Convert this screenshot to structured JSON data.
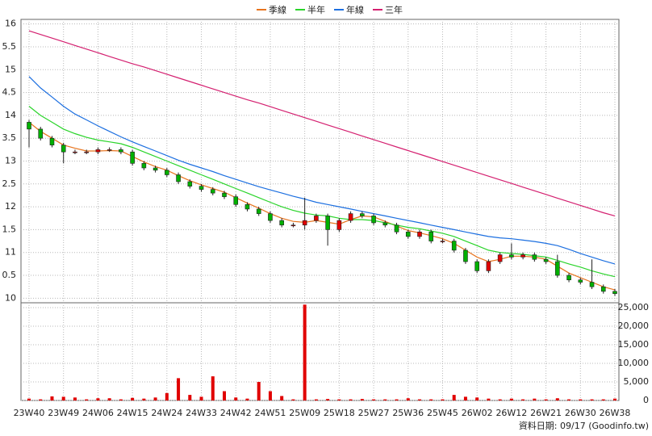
{
  "chart_data": {
    "type": "candlestick",
    "legend_position": "top",
    "grid": true,
    "up_color": "#e00000",
    "down_color": "#00b000",
    "source_note": "資料日期: 09/17 (Goodinfo.tw)",
    "categories": [
      "23W40",
      null,
      null,
      "23W49",
      null,
      null,
      "24W06",
      null,
      null,
      "24W15",
      null,
      null,
      "24W24",
      null,
      null,
      "24W33",
      null,
      null,
      "24W42",
      null,
      null,
      "24W51",
      null,
      null,
      "25W09",
      null,
      null,
      "25W18",
      null,
      null,
      "25W27",
      null,
      null,
      "25W36",
      null,
      null,
      "25W45",
      null,
      null,
      "26W02",
      null,
      null,
      "26W12",
      null,
      null,
      "26W21",
      null,
      null,
      "26W30",
      null,
      null,
      "26W38"
    ],
    "candles": {
      "open": [
        13.85,
        13.7,
        13.5,
        13.35,
        13.2,
        13.2,
        13.2,
        13.25,
        13.25,
        13.2,
        12.95,
        12.85,
        12.8,
        12.7,
        12.55,
        12.45,
        12.38,
        12.3,
        12.22,
        12.05,
        11.95,
        11.85,
        11.7,
        11.6,
        11.6,
        11.7,
        11.8,
        11.5,
        11.7,
        11.85,
        11.8,
        11.65,
        11.6,
        11.45,
        11.35,
        11.45,
        11.25,
        11.25,
        11.05,
        10.8,
        10.6,
        10.8,
        10.95,
        10.9,
        10.95,
        10.85,
        10.8,
        10.5,
        10.4,
        10.35,
        10.25,
        10.15
      ],
      "high": [
        13.9,
        13.75,
        13.55,
        13.4,
        13.25,
        13.25,
        13.3,
        13.3,
        13.3,
        13.25,
        13.0,
        12.9,
        12.85,
        12.75,
        12.6,
        12.5,
        12.43,
        12.35,
        12.27,
        12.1,
        12.0,
        11.9,
        11.75,
        11.65,
        12.2,
        11.85,
        11.85,
        11.75,
        11.9,
        11.9,
        11.85,
        11.7,
        11.65,
        11.5,
        11.5,
        11.5,
        11.3,
        11.3,
        11.1,
        10.85,
        10.85,
        11.0,
        11.2,
        11.0,
        11.0,
        10.9,
        10.95,
        10.55,
        10.45,
        10.85,
        10.3,
        10.2
      ],
      "low": [
        13.3,
        13.45,
        13.3,
        12.95,
        13.15,
        13.15,
        13.15,
        13.2,
        13.15,
        12.9,
        12.8,
        12.75,
        12.65,
        12.5,
        12.4,
        12.33,
        12.25,
        12.17,
        12.0,
        11.9,
        11.8,
        11.65,
        11.55,
        11.55,
        11.5,
        11.65,
        11.15,
        11.45,
        11.65,
        11.75,
        11.6,
        11.55,
        11.4,
        11.3,
        11.3,
        11.2,
        11.2,
        11.0,
        10.75,
        10.55,
        10.55,
        10.75,
        10.85,
        10.85,
        10.8,
        10.75,
        10.45,
        10.35,
        10.3,
        10.2,
        10.1,
        10.05
      ],
      "close": [
        13.7,
        13.5,
        13.35,
        13.2,
        13.2,
        13.2,
        13.25,
        13.25,
        13.2,
        12.95,
        12.85,
        12.8,
        12.7,
        12.55,
        12.45,
        12.38,
        12.3,
        12.22,
        12.05,
        11.95,
        11.85,
        11.7,
        11.6,
        11.6,
        11.7,
        11.8,
        11.5,
        11.7,
        11.85,
        11.8,
        11.65,
        11.6,
        11.45,
        11.35,
        11.45,
        11.25,
        11.25,
        11.05,
        10.8,
        10.6,
        10.8,
        10.95,
        10.9,
        10.95,
        10.85,
        10.8,
        10.5,
        10.4,
        10.35,
        10.25,
        10.15,
        10.1
      ]
    },
    "series": [
      {
        "name": "季線",
        "color": "#e8741e",
        "values": [
          13.85,
          13.65,
          13.5,
          13.35,
          13.28,
          13.22,
          13.22,
          13.23,
          13.22,
          13.1,
          12.98,
          12.88,
          12.8,
          12.68,
          12.57,
          12.48,
          12.4,
          12.32,
          12.2,
          12.08,
          11.97,
          11.85,
          11.75,
          11.68,
          11.66,
          11.7,
          11.66,
          11.62,
          11.72,
          11.8,
          11.78,
          11.68,
          11.58,
          11.48,
          11.43,
          11.37,
          11.3,
          11.2,
          11.05,
          10.9,
          10.8,
          10.85,
          10.92,
          10.92,
          10.9,
          10.85,
          10.7,
          10.55,
          10.45,
          10.35,
          10.25,
          10.18
        ]
      },
      {
        "name": "半年",
        "color": "#2ad42a",
        "values": [
          14.2,
          14.0,
          13.85,
          13.7,
          13.6,
          13.52,
          13.46,
          13.42,
          13.38,
          13.3,
          13.2,
          13.1,
          13.0,
          12.9,
          12.8,
          12.7,
          12.6,
          12.5,
          12.4,
          12.3,
          12.2,
          12.1,
          12.0,
          11.92,
          11.86,
          11.82,
          11.8,
          11.75,
          11.72,
          11.72,
          11.7,
          11.65,
          11.6,
          11.55,
          11.52,
          11.47,
          11.42,
          11.35,
          11.25,
          11.15,
          11.05,
          11.0,
          10.98,
          10.96,
          10.93,
          10.9,
          10.83,
          10.75,
          10.68,
          10.6,
          10.53,
          10.47
        ]
      },
      {
        "name": "年線",
        "color": "#1c6fe0",
        "values": [
          14.85,
          14.6,
          14.4,
          14.2,
          14.03,
          13.9,
          13.77,
          13.65,
          13.53,
          13.42,
          13.32,
          13.22,
          13.12,
          13.02,
          12.93,
          12.85,
          12.77,
          12.68,
          12.6,
          12.52,
          12.44,
          12.37,
          12.3,
          12.23,
          12.17,
          12.1,
          12.05,
          12.0,
          11.95,
          11.9,
          11.85,
          11.8,
          11.75,
          11.7,
          11.65,
          11.6,
          11.55,
          11.5,
          11.45,
          11.4,
          11.35,
          11.32,
          11.3,
          11.27,
          11.24,
          11.2,
          11.15,
          11.07,
          10.98,
          10.9,
          10.82,
          10.75
        ]
      },
      {
        "name": "三年",
        "color": "#d42070",
        "values": [
          15.85,
          15.77,
          15.69,
          15.61,
          15.53,
          15.45,
          15.37,
          15.29,
          15.21,
          15.13,
          15.06,
          14.98,
          14.9,
          14.82,
          14.74,
          14.66,
          14.58,
          14.5,
          14.42,
          14.34,
          14.27,
          14.19,
          14.11,
          14.03,
          13.95,
          13.87,
          13.79,
          13.71,
          13.63,
          13.55,
          13.47,
          13.39,
          13.31,
          13.23,
          13.15,
          13.07,
          12.99,
          12.91,
          12.83,
          12.75,
          12.67,
          12.59,
          12.51,
          12.43,
          12.35,
          12.27,
          12.19,
          12.11,
          12.03,
          11.95,
          11.87,
          11.8
        ]
      }
    ],
    "volume": {
      "color": "#e00000",
      "axis": "y2",
      "values": [
        500,
        300,
        1100,
        1000,
        800,
        300,
        600,
        600,
        300,
        700,
        500,
        800,
        2000,
        6000,
        1500,
        1000,
        6500,
        2500,
        800,
        500,
        5000,
        2500,
        1200,
        300,
        25800,
        300,
        400,
        300,
        300,
        400,
        300,
        300,
        300,
        600,
        300,
        300,
        300,
        1500,
        1000,
        800,
        500,
        300,
        500,
        300,
        500,
        300,
        600,
        300,
        300,
        300,
        300,
        500
      ]
    },
    "ylim": [
      9.9,
      16.1
    ],
    "yticks": [
      10,
      {
        "value": 10.5,
        "label": "0.5"
      },
      11,
      {
        "value": 11.5,
        "label": "1.5"
      },
      12,
      {
        "value": 12.5,
        "label": "2.5"
      },
      13,
      {
        "value": 13.5,
        "label": "3.5"
      },
      14,
      {
        "value": 14.5,
        "label": "4.5"
      },
      15,
      {
        "value": 15.5,
        "label": "5.5"
      },
      16
    ],
    "y2lim": [
      0,
      26300
    ],
    "y2ticks": [
      0,
      {
        "value": 5000,
        "label": "5,000"
      },
      {
        "value": 10000,
        "label": "10,000"
      },
      {
        "value": 15000,
        "label": "15,000"
      },
      {
        "value": 20000,
        "label": "20,000"
      },
      {
        "value": 25000,
        "label": "25,000"
      }
    ]
  }
}
